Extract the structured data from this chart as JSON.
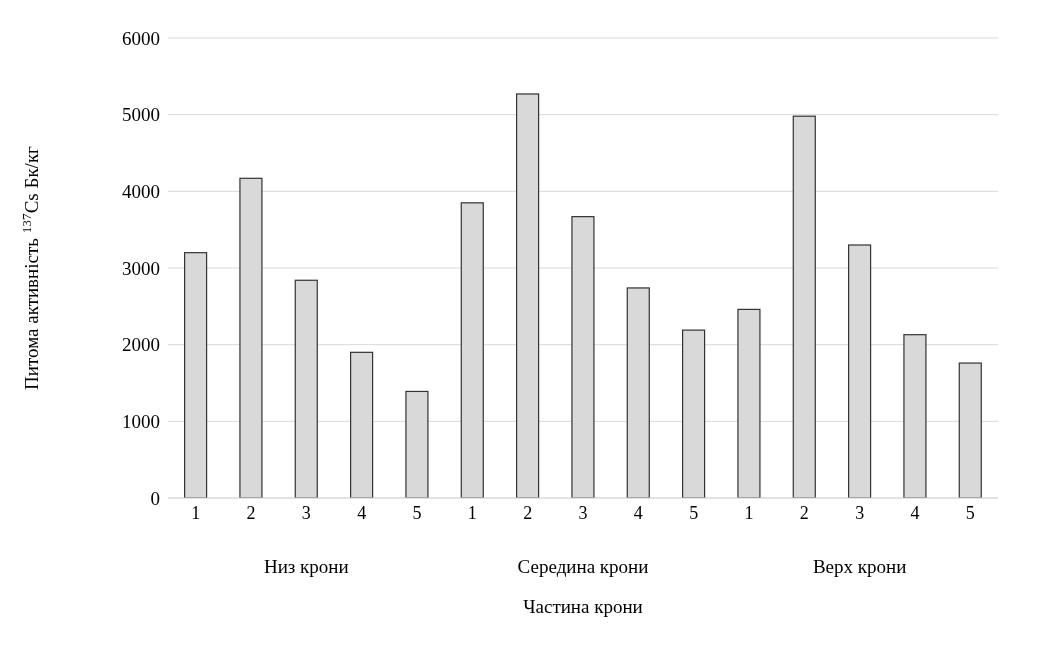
{
  "chart_data": {
    "type": "bar",
    "xlabel": "Частина крони",
    "ylabel": "Питома активність $^{137}$Cs Бк/кг",
    "categories": [
      "1",
      "2",
      "3",
      "4",
      "5",
      "1",
      "2",
      "3",
      "4",
      "5",
      "1",
      "2",
      "3",
      "4",
      "5"
    ],
    "values": [
      3200,
      4170,
      2840,
      1900,
      1390,
      3850,
      5270,
      3670,
      2740,
      2190,
      2460,
      4980,
      3300,
      2130,
      1760
    ],
    "color": "#d9d9d9",
    "ylim": [
      0,
      6000
    ],
    "yticks": [
      0,
      1000,
      2000,
      3000,
      4000,
      5000,
      6000
    ],
    "grid": "y",
    "annotations": [
      "Низ крони",
      "Середина крони",
      "Верх крони"
    ]
  }
}
